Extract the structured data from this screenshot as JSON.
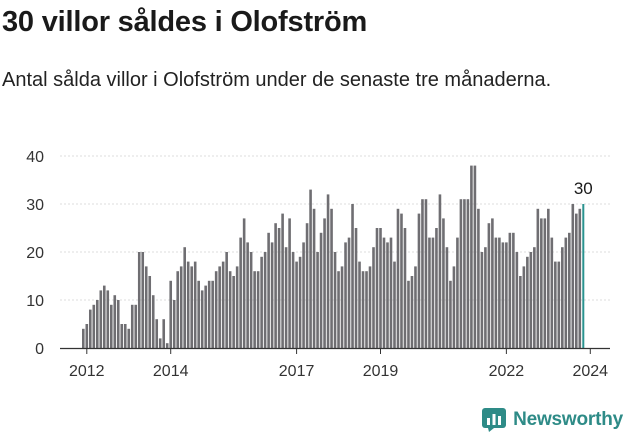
{
  "header": {
    "title": "30 villor såldes i Olofström",
    "subtitle": "Antal sålda villor i Olofström under de senaste tre månaderna."
  },
  "brand": {
    "name": "Newsworthy",
    "icon": "bar-chart-logo-icon"
  },
  "colors": {
    "bar": "#6f6e72",
    "highlight": "#2a938f",
    "brand": "#2e8b87",
    "grid": "#dcdcdc",
    "axis": "#333333"
  },
  "chart_data": {
    "type": "bar",
    "title": "",
    "xlabel": "",
    "ylabel": "",
    "ylim": [
      0,
      40
    ],
    "yticks": [
      0,
      10,
      20,
      30,
      40
    ],
    "xticks": [
      "2012",
      "2014",
      "2017",
      "2019",
      "2022",
      "2024"
    ],
    "grid": true,
    "x_start": "2011-12",
    "frequency": "monthly",
    "values": [
      4,
      5,
      8,
      9,
      10,
      12,
      13,
      12,
      9,
      11,
      10,
      5,
      5,
      4,
      9,
      9,
      20,
      20,
      17,
      15,
      11,
      6,
      2,
      6,
      1,
      14,
      10,
      16,
      17,
      21,
      18,
      17,
      18,
      14,
      12,
      13,
      14,
      14,
      16,
      17,
      18,
      20,
      16,
      15,
      17,
      23,
      27,
      22,
      20,
      16,
      16,
      19,
      20,
      24,
      22,
      26,
      25,
      28,
      21,
      27,
      20,
      18,
      19,
      22,
      26,
      33,
      29,
      20,
      24,
      27,
      32,
      29,
      20,
      16,
      17,
      22,
      23,
      30,
      25,
      18,
      16,
      16,
      17,
      21,
      25,
      25,
      23,
      22,
      23,
      18,
      29,
      28,
      25,
      14,
      15,
      17,
      28,
      31,
      31,
      23,
      23,
      25,
      32,
      27,
      21,
      14,
      17,
      23,
      31,
      31,
      31,
      38,
      38,
      29,
      20,
      21,
      26,
      27,
      23,
      23,
      22,
      22,
      24,
      24,
      20,
      15,
      17,
      19,
      20,
      21,
      29,
      27,
      27,
      29,
      23,
      18,
      18,
      21,
      23,
      24,
      30,
      28,
      29,
      30
    ],
    "last_label": "30"
  }
}
